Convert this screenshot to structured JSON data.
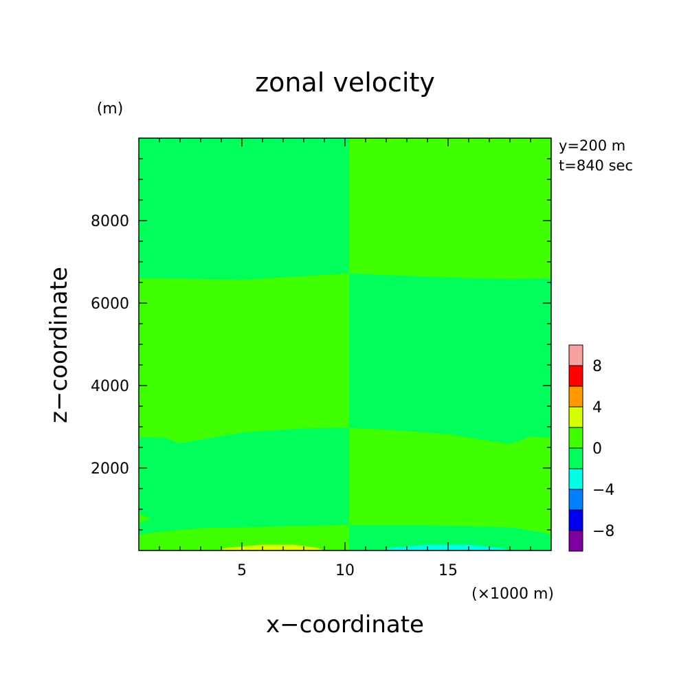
{
  "chart_data": {
    "type": "heatmap",
    "title": "zonal velocity",
    "xlabel": "x−coordinate",
    "ylabel": "z−coordinate",
    "x_unit": "(×1000 m)",
    "y_unit": "(m)",
    "annotations": [
      "y=200 m",
      "t=840 sec"
    ],
    "xlim": [
      0,
      20
    ],
    "ylim": [
      0,
      10000
    ],
    "x_ticks": [
      5,
      10,
      15
    ],
    "y_ticks": [
      2000,
      4000,
      6000,
      8000
    ],
    "grid": false,
    "colorbar": {
      "levels": [
        -10,
        -8,
        -6,
        -4,
        -2,
        0,
        2,
        4,
        6,
        8,
        10
      ],
      "tick_labels": [
        "8",
        "4",
        "0",
        "−4",
        "−8"
      ],
      "tick_values": [
        8,
        4,
        0,
        -4,
        -8
      ],
      "colors": [
        "#7f00a0",
        "#0000ee",
        "#0080ff",
        "#00ffe6",
        "#00ff5a",
        "#40ff00",
        "#d8ff00",
        "#ff9900",
        "#ff0000",
        "#f8a0a0"
      ]
    },
    "background_color": "#00ff5a",
    "regions": [
      {
        "value_range": [
          0,
          2
        ],
        "color": "#40ff00",
        "points": [
          [
            10.2,
            10000
          ],
          [
            20,
            10000
          ],
          [
            20,
            6600
          ],
          [
            18,
            6580
          ],
          [
            15,
            6620
          ],
          [
            12,
            6680
          ],
          [
            10.2,
            6720
          ]
        ]
      },
      {
        "value_range": [
          0,
          2
        ],
        "color": "#40ff00",
        "points": [
          [
            0,
            6600
          ],
          [
            2,
            6590
          ],
          [
            5,
            6560
          ],
          [
            8,
            6650
          ],
          [
            10.2,
            6720
          ],
          [
            10.2,
            2980
          ],
          [
            8,
            2960
          ],
          [
            5,
            2860
          ],
          [
            2,
            2600
          ],
          [
            1.2,
            2740
          ],
          [
            0,
            2750
          ]
        ]
      },
      {
        "value_range": [
          0,
          2
        ],
        "color": "#40ff00",
        "points": [
          [
            10.2,
            2970
          ],
          [
            12,
            2930
          ],
          [
            15,
            2820
          ],
          [
            18,
            2580
          ],
          [
            19,
            2760
          ],
          [
            20,
            2740
          ],
          [
            20,
            380
          ],
          [
            19.5,
            450
          ],
          [
            18,
            560
          ],
          [
            14,
            610
          ],
          [
            10.2,
            620
          ]
        ]
      },
      {
        "value_range": [
          0,
          2
        ],
        "color": "#40ff00",
        "points": [
          [
            0,
            380
          ],
          [
            1,
            450
          ],
          [
            3,
            540
          ],
          [
            6,
            570
          ],
          [
            10.2,
            620
          ],
          [
            10.2,
            0
          ],
          [
            0,
            0
          ]
        ]
      },
      {
        "value_range": [
          0,
          2
        ],
        "color": "#40ff00",
        "points": [
          [
            0,
            900
          ],
          [
            0.6,
            770
          ],
          [
            0,
            650
          ]
        ]
      },
      {
        "value_range": [
          2,
          4
        ],
        "color": "#d8ff00",
        "points": [
          [
            3.8,
            0
          ],
          [
            4.2,
            60
          ],
          [
            6,
            140
          ],
          [
            7.5,
            140
          ],
          [
            8.6,
            70
          ],
          [
            9,
            0
          ]
        ]
      },
      {
        "value_range": [
          -4,
          -2
        ],
        "color": "#00ffe6",
        "points": [
          [
            11.8,
            0
          ],
          [
            12.2,
            60
          ],
          [
            14,
            140
          ],
          [
            16,
            140
          ],
          [
            17.6,
            60
          ],
          [
            18,
            0
          ]
        ]
      }
    ]
  }
}
